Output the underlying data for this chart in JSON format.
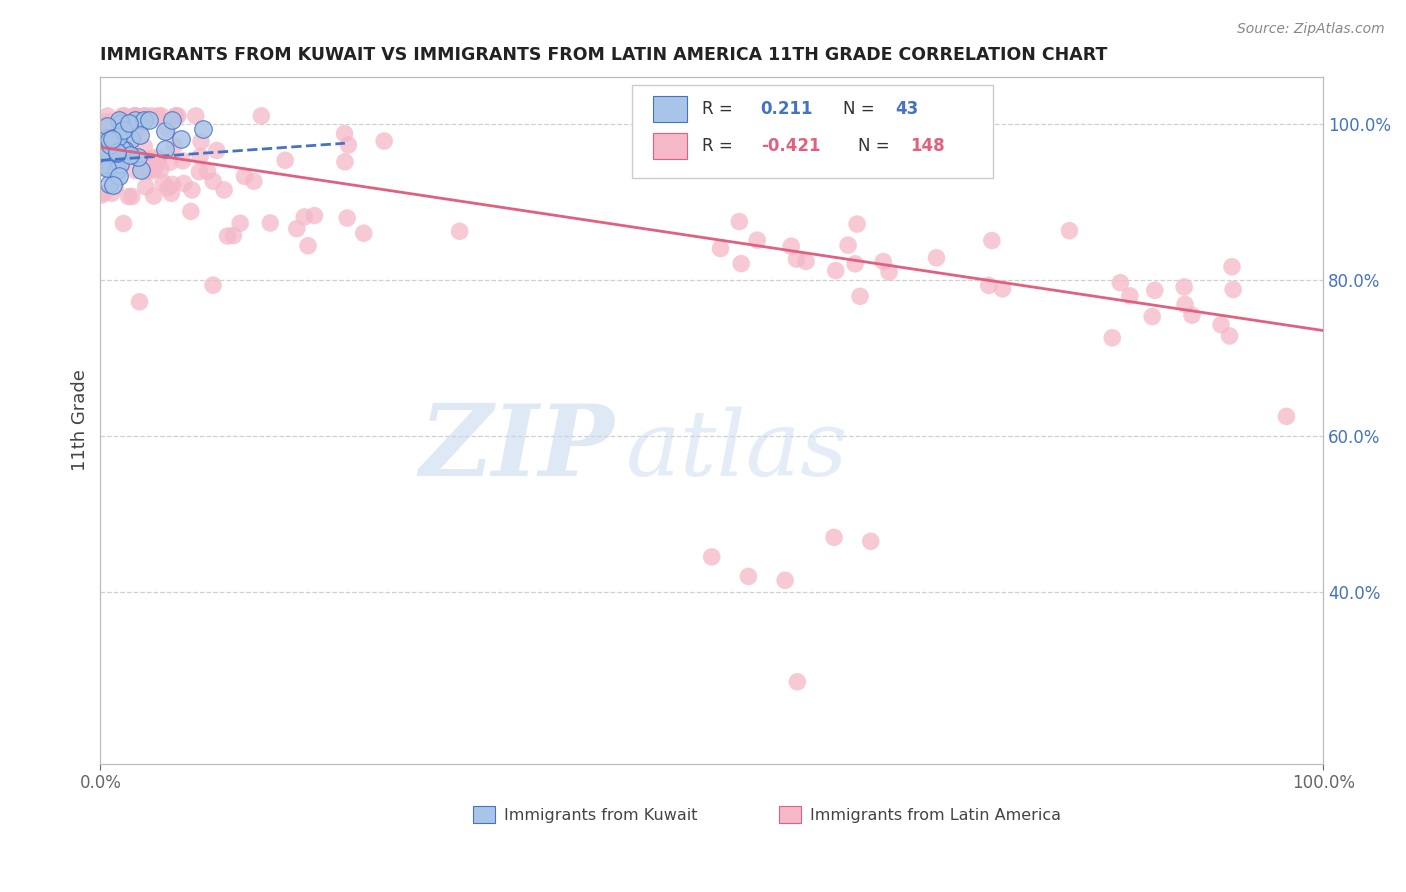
{
  "title": "IMMIGRANTS FROM KUWAIT VS IMMIGRANTS FROM LATIN AMERICA 11TH GRADE CORRELATION CHART",
  "source": "Source: ZipAtlas.com",
  "ylabel": "11th Grade",
  "watermark_zip": "ZIP",
  "watermark_atlas": "atlas",
  "kuwait_R": 0.211,
  "kuwait_N": 43,
  "kuwait_color": "#a8c4e8",
  "kuwait_edge": "#4472c4",
  "kuwait_line_color": "#4472c4",
  "latin_R": -0.421,
  "latin_N": 148,
  "latin_color": "#f4b8c8",
  "latin_line_color": "#e06080",
  "xlim": [
    0.0,
    1.0
  ],
  "ylim": [
    0.18,
    1.06
  ],
  "right_yticks": [
    0.4,
    0.6,
    0.8,
    1.0
  ],
  "right_yticklabels": [
    "40.0%",
    "60.0%",
    "80.0%",
    "100.0%"
  ],
  "grid_color": "#d0d0d0",
  "bg_color": "#ffffff",
  "latin_trend_start": 0.97,
  "latin_trend_end": 0.735,
  "kuwait_trend_start_x": 0.0,
  "kuwait_trend_end_x": 0.2,
  "kuwait_trend_start_y": 0.953,
  "kuwait_trend_end_y": 0.975
}
